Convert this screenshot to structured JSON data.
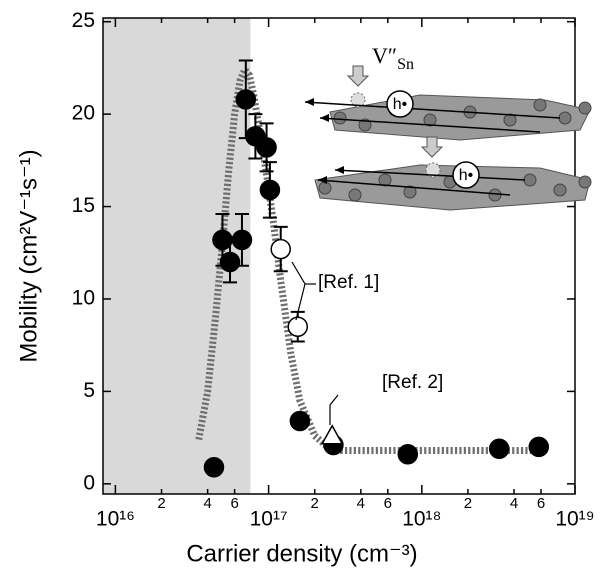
{
  "chart_data": {
    "type": "scatter",
    "x_label": "Carrier density (cm⁻³)",
    "y_label": "Mobility (cm²V⁻¹s⁻¹)",
    "xscale": "log",
    "xlim": [
      8300000000000000.0,
      1e+19
    ],
    "ylim": [
      -0.55,
      25.2
    ],
    "xticks": [
      {
        "value": 1e+16,
        "label": "10¹⁶"
      },
      {
        "value": 2e+16,
        "label": "2"
      },
      {
        "value": 4e+16,
        "label": "4"
      },
      {
        "value": 6e+16,
        "label": "6"
      },
      {
        "value": 1e+17,
        "label": "10¹⁷"
      },
      {
        "value": 2e+17,
        "label": "2"
      },
      {
        "value": 4e+17,
        "label": "4"
      },
      {
        "value": 6e+17,
        "label": "6"
      },
      {
        "value": 1e+18,
        "label": "10¹⁸"
      },
      {
        "value": 2e+18,
        "label": "2"
      },
      {
        "value": 4e+18,
        "label": "4"
      },
      {
        "value": 6e+18,
        "label": "6"
      },
      {
        "value": 1e+19,
        "label": "10¹⁹"
      }
    ],
    "yticks": [
      0,
      5,
      10,
      15,
      20,
      25
    ],
    "shaded_region": {
      "x": [
        8300000000000000.0,
        7.6e+16
      ],
      "color": "#d9d9d9"
    },
    "series": [
      {
        "marker": "circle",
        "color": "#000000",
        "x": [
          4.4e+16,
          5e+16,
          5.6e+16,
          6.7e+16,
          7.1e+16,
          8.2e+16,
          9.7e+16,
          1.02e+17,
          1.6e+17,
          2.65e+17,
          8.1e+17,
          3.2e+18,
          5.8e+18
        ],
        "values": [
          0.9,
          13.2,
          12.0,
          13.2,
          20.8,
          18.8,
          18.2,
          15.9,
          3.4,
          2.1,
          1.6,
          1.9,
          2.0
        ],
        "errors": [
          null,
          1.4,
          1.1,
          1.4,
          2.1,
          1.2,
          1.3,
          1.5,
          null,
          null,
          null,
          null,
          null
        ]
      },
      {
        "marker": "circle",
        "color": "#ffffff",
        "annotation": "[Ref. 1]",
        "x": [
          1.2e+17,
          1.55e+17
        ],
        "values": [
          12.7,
          8.5
        ],
        "errors": [
          1.2,
          0.8
        ]
      },
      {
        "marker": "triangle",
        "color": "#ffffff",
        "annotation": "[Ref. 2]",
        "x": [
          2.6e+17
        ],
        "values": [
          2.6
        ]
      }
    ],
    "fit": {
      "color": "#6e6e6e",
      "x": [
        3.5e+16,
        4e+16,
        4.5e+16,
        5e+16,
        5.5e+16,
        6e+16,
        6.5e+16,
        7e+16,
        7.5e+16,
        8e+16,
        9e+16,
        1e+17,
        1.1e+17,
        1.2e+17,
        1.4e+17,
        1.6e+17,
        2e+17,
        2.5e+17,
        3e+17,
        6e+18
      ],
      "values": [
        2.4,
        5,
        9,
        13,
        17,
        20,
        21.8,
        22.4,
        22.1,
        21,
        18.5,
        16,
        13.5,
        11,
        7,
        4.5,
        2.6,
        1.9,
        1.8,
        1.8
      ]
    },
    "inset": {
      "vacancy_symbol": "V″",
      "vacancy_subscript": "Sn",
      "hole_labels": [
        "h•",
        "h•"
      ]
    }
  }
}
